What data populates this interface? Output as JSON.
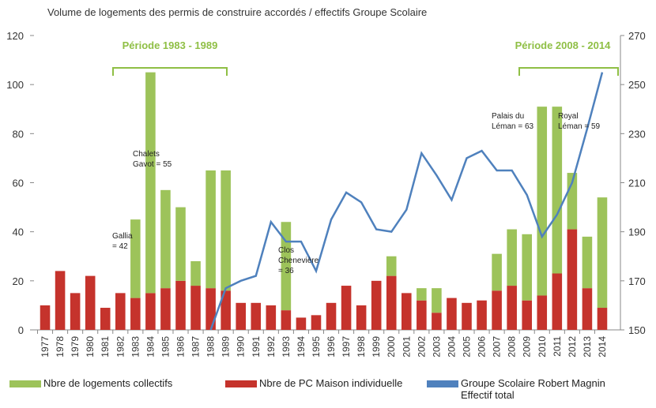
{
  "chart_data": {
    "type": "bar",
    "title": "Volume de logements des permis de construire accordés / effectifs Groupe Scolaire",
    "categories": [
      "1977",
      "1978",
      "1979",
      "1980",
      "1981",
      "1982",
      "1983",
      "1984",
      "1985",
      "1986",
      "1987",
      "1988",
      "1989",
      "1990",
      "1991",
      "1992",
      "1993",
      "1994",
      "1995",
      "1996",
      "1997",
      "1998",
      "1999",
      "2000",
      "2001",
      "2002",
      "2003",
      "2004",
      "2005",
      "2006",
      "2007",
      "2008",
      "2009",
      "2010",
      "2011",
      "2012",
      "2013",
      "2014"
    ],
    "series": [
      {
        "name": "Nbre de logements collectifs",
        "color": "#9dc35a",
        "stack": "s",
        "values": [
          0,
          0,
          0,
          0,
          0,
          0,
          32,
          90,
          40,
          30,
          10,
          48,
          49,
          0,
          0,
          0,
          36,
          0,
          0,
          0,
          0,
          0,
          0,
          8,
          0,
          5,
          10,
          0,
          0,
          0,
          15,
          23,
          27,
          77,
          68,
          23,
          21,
          45
        ]
      },
      {
        "name": "Nbre de PC Maison individuelle",
        "color": "#c5332c",
        "stack": "s",
        "values": [
          10,
          24,
          15,
          22,
          9,
          15,
          13,
          15,
          17,
          20,
          18,
          17,
          16,
          11,
          11,
          10,
          8,
          5,
          6,
          11,
          18,
          10,
          20,
          22,
          15,
          12,
          7,
          13,
          11,
          12,
          16,
          18,
          12,
          14,
          23,
          41,
          17,
          9
        ]
      },
      {
        "name": "Groupe Scolaire Robert Magnin Effectif total",
        "color": "#4f81bd",
        "type": "line",
        "axis": "y2",
        "values": [
          null,
          null,
          null,
          null,
          null,
          null,
          null,
          null,
          null,
          null,
          null,
          150,
          167,
          170,
          172,
          194,
          186,
          186,
          174,
          195,
          206,
          202,
          191,
          190,
          199,
          222,
          213,
          203,
          220,
          223,
          215,
          215,
          205,
          188,
          197,
          210,
          232,
          255
        ]
      }
    ],
    "ylim": [
      0,
      120
    ],
    "yticks": [
      0,
      20,
      40,
      60,
      80,
      100,
      120
    ],
    "y2lim": [
      150,
      270
    ],
    "y2ticks": [
      150,
      170,
      190,
      210,
      230,
      250,
      270
    ],
    "periods": [
      "Période 1983 - 1989",
      "Période 2008 - 2014"
    ],
    "annotations": [
      [
        "Chalets",
        "Gavot = 55"
      ],
      [
        "Gallia",
        "= 42"
      ],
      [
        "Clos",
        "Chenevière",
        "= 36"
      ],
      [
        "Palais du",
        "Léman = 63"
      ],
      [
        "Royal",
        "Léman = 59"
      ]
    ]
  }
}
